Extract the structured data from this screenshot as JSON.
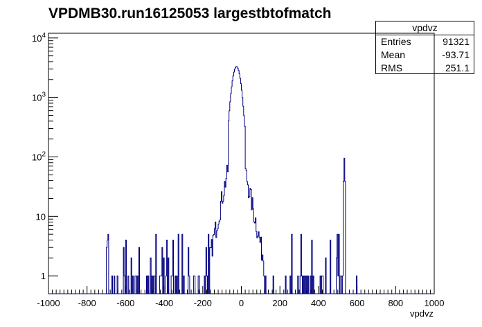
{
  "chart_data": {
    "type": "histogram",
    "title": "VPDMB30.run16125053 largestbtofmatch",
    "xlabel": "vpdvz",
    "ylabel": "",
    "xlim": [
      -1000,
      1000
    ],
    "ylim": [
      0.5,
      12000
    ],
    "log_y": true,
    "grid": false,
    "x_ticks": [
      "-1000",
      "-800",
      "-600",
      "-400",
      "-200",
      "0",
      "200",
      "400",
      "600",
      "800",
      "1000"
    ],
    "y_ticks": [
      {
        "value": 1,
        "base": "1",
        "exp": ""
      },
      {
        "value": 10,
        "base": "10",
        "exp": ""
      },
      {
        "value": 100,
        "base": "10",
        "exp": "2"
      },
      {
        "value": 1000,
        "base": "10",
        "exp": "3"
      },
      {
        "value": 10000,
        "base": "10",
        "exp": "4"
      }
    ],
    "line_color": "#000080",
    "peak_center": -25,
    "peak_height": 3300,
    "stats": {
      "name": "vpdvz",
      "entries_label": "Entries",
      "entries": "91321",
      "mean_label": "Mean",
      "mean": "-93.71",
      "rms_label": "RMS",
      "rms": "251.1"
    }
  }
}
